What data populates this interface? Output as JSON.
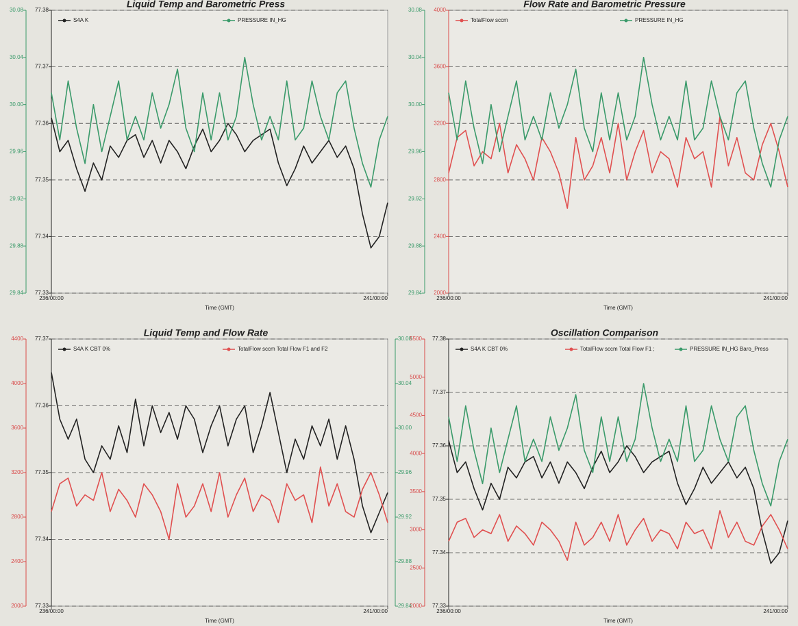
{
  "chart_data": [
    {
      "type": "line",
      "title": "Liquid Temp and Barometric Press",
      "x_label": "Time (GMT)",
      "x": [
        236,
        236.125,
        236.25,
        236.375,
        236.5,
        236.625,
        236.75,
        236.875,
        237,
        237.125,
        237.25,
        237.375,
        237.5,
        237.625,
        237.75,
        237.875,
        238,
        238.125,
        238.25,
        238.375,
        238.5,
        238.625,
        238.75,
        238.875,
        239,
        239.125,
        239.25,
        239.375,
        239.5,
        239.625,
        239.75,
        239.875,
        240,
        240.125,
        240.25,
        240.375,
        240.5,
        240.625,
        240.75,
        240.875,
        241
      ],
      "xlim": [
        236,
        241
      ],
      "xticks": [
        {
          "value": 236,
          "label": "236/00:00"
        },
        {
          "value": 241,
          "label": "241/00:00"
        }
      ],
      "ylim": [
        29.84,
        30.08
      ],
      "yticks": [
        29.84,
        29.88,
        29.92,
        29.96,
        {
          "value": 30,
          "label": "30.00"
        },
        30.04,
        30.08
      ],
      "ycolor": "#3a9a6a",
      "y2lim": [
        77.33,
        77.38
      ],
      "y2ticks": [
        77.33,
        77.34,
        77.35,
        77.36,
        77.37,
        77.38
      ],
      "y2color": "#222222",
      "grid": true,
      "legend": "top",
      "series": [
        {
          "name": "S4A  K",
          "color": "#222222",
          "axis": "y2",
          "values": [
            77.361,
            77.355,
            77.357,
            77.352,
            77.348,
            77.353,
            77.35,
            77.356,
            77.354,
            77.357,
            77.358,
            77.354,
            77.357,
            77.353,
            77.357,
            77.355,
            77.352,
            77.356,
            77.359,
            77.355,
            77.357,
            77.36,
            77.358,
            77.355,
            77.357,
            77.358,
            77.359,
            77.353,
            77.349,
            77.352,
            77.356,
            77.353,
            77.355,
            77.357,
            77.354,
            77.356,
            77.352,
            77.344,
            77.338,
            77.34,
            77.346
          ]
        },
        {
          "name": "PRESSURE  IN_HG",
          "color": "#3a9a6a",
          "axis": "y",
          "values": [
            30.01,
            29.97,
            30.02,
            29.98,
            29.95,
            30,
            29.96,
            29.99,
            30.02,
            29.97,
            29.99,
            29.97,
            30.01,
            29.98,
            30,
            30.03,
            29.98,
            29.96,
            30.01,
            29.97,
            30.01,
            29.97,
            29.99,
            30.04,
            30,
            29.97,
            29.99,
            29.97,
            30.02,
            29.97,
            29.98,
            30.02,
            29.99,
            29.97,
            30.01,
            30.02,
            29.98,
            29.95,
            29.93,
            29.97,
            29.99
          ]
        }
      ]
    },
    {
      "type": "line",
      "title": "Flow Rate and Barometric Pressure",
      "x_label": "Time (GMT)",
      "x": [
        236,
        236.125,
        236.25,
        236.375,
        236.5,
        236.625,
        236.75,
        236.875,
        237,
        237.125,
        237.25,
        237.375,
        237.5,
        237.625,
        237.75,
        237.875,
        238,
        238.125,
        238.25,
        238.375,
        238.5,
        238.625,
        238.75,
        238.875,
        239,
        239.125,
        239.25,
        239.375,
        239.5,
        239.625,
        239.75,
        239.875,
        240,
        240.125,
        240.25,
        240.375,
        240.5,
        240.625,
        240.75,
        240.875,
        241
      ],
      "xlim": [
        236,
        241
      ],
      "xticks": [
        {
          "value": 236,
          "label": "236/00:00"
        },
        {
          "value": 241,
          "label": "241/00:00"
        }
      ],
      "ylim": [
        29.84,
        30.08
      ],
      "yticks": [
        29.84,
        29.88,
        29.92,
        29.96,
        {
          "value": 30,
          "label": "30.00"
        },
        30.04,
        30.08
      ],
      "ycolor": "#3a9a6a",
      "y2lim": [
        2000,
        4000
      ],
      "y2ticks": [
        2000,
        2400,
        2800,
        3200,
        3600,
        4000
      ],
      "y2color": "#d94a4a",
      "grid": true,
      "legend": "top",
      "series": [
        {
          "name": "TotalFlow  sccm",
          "color": "#e05050",
          "axis": "y2",
          "values": [
            2850,
            3100,
            3150,
            2900,
            3000,
            2950,
            3200,
            2850,
            3050,
            2950,
            2800,
            3100,
            3000,
            2850,
            2600,
            3100,
            2800,
            2900,
            3100,
            2850,
            3200,
            2800,
            3000,
            3150,
            2850,
            3000,
            2950,
            2750,
            3100,
            2950,
            3000,
            2750,
            3250,
            2900,
            3100,
            2850,
            2800,
            3050,
            3200,
            3000,
            2750
          ]
        },
        {
          "name": "PRESSURE  IN_HG",
          "color": "#3a9a6a",
          "axis": "y",
          "values": [
            30.01,
            29.97,
            30.02,
            29.98,
            29.95,
            30,
            29.96,
            29.99,
            30.02,
            29.97,
            29.99,
            29.97,
            30.01,
            29.98,
            30,
            30.03,
            29.98,
            29.96,
            30.01,
            29.97,
            30.01,
            29.97,
            29.99,
            30.04,
            30,
            29.97,
            29.99,
            29.97,
            30.02,
            29.97,
            29.98,
            30.02,
            29.99,
            29.97,
            30.01,
            30.02,
            29.98,
            29.95,
            29.93,
            29.97,
            29.99
          ]
        }
      ]
    },
    {
      "type": "line",
      "title": "Liquid Temp and Flow Rate",
      "x_label": "Time (GMT)",
      "x": [
        236,
        236.125,
        236.25,
        236.375,
        236.5,
        236.625,
        236.75,
        236.875,
        237,
        237.125,
        237.25,
        237.375,
        237.5,
        237.625,
        237.75,
        237.875,
        238,
        238.125,
        238.25,
        238.375,
        238.5,
        238.625,
        238.75,
        238.875,
        239,
        239.125,
        239.25,
        239.375,
        239.5,
        239.625,
        239.75,
        239.875,
        240,
        240.125,
        240.25,
        240.375,
        240.5,
        240.625,
        240.75,
        240.875,
        241
      ],
      "xlim": [
        236,
        241
      ],
      "xticks": [
        {
          "value": 236,
          "label": "236/00:00"
        },
        {
          "value": 241,
          "label": "241/00:00"
        }
      ],
      "ylim": [
        2000,
        4400
      ],
      "yticks": [
        2000,
        2400,
        2800,
        3200,
        3600,
        4000,
        4400
      ],
      "ycolor": "#d94a4a",
      "y2lim": [
        77.33,
        77.37
      ],
      "y2ticks": [
        77.33,
        77.34,
        77.35,
        77.36,
        77.37
      ],
      "y2color": "#222222",
      "y3lim": [
        29.84,
        30.08
      ],
      "y3ticks": [
        29.84,
        29.88,
        29.92,
        29.96,
        {
          "value": 30,
          "label": "30.00"
        },
        30.04,
        30.08
      ],
      "y3color": "#3a9a6a",
      "grid": true,
      "legend": "top",
      "series": [
        {
          "name": "S4A  K  CBT 0%",
          "color": "#222222",
          "axis": "y2",
          "values": [
            77.365,
            77.358,
            77.355,
            77.358,
            77.352,
            77.35,
            77.354,
            77.352,
            77.357,
            77.353,
            77.361,
            77.354,
            77.36,
            77.356,
            77.359,
            77.355,
            77.36,
            77.358,
            77.353,
            77.357,
            77.36,
            77.354,
            77.358,
            77.36,
            77.353,
            77.357,
            77.362,
            77.356,
            77.35,
            77.355,
            77.352,
            77.357,
            77.354,
            77.358,
            77.352,
            77.357,
            77.352,
            77.345,
            77.341,
            77.344,
            77.347
          ]
        },
        {
          "name": "TotalFlow  sccm  Total Flow F1 and F2",
          "color": "#e05050",
          "axis": "y",
          "values": [
            2850,
            3100,
            3150,
            2900,
            3000,
            2950,
            3200,
            2850,
            3050,
            2950,
            2800,
            3100,
            3000,
            2850,
            2600,
            3100,
            2800,
            2900,
            3100,
            2850,
            3200,
            2800,
            3000,
            3150,
            2850,
            3000,
            2950,
            2750,
            3100,
            2950,
            3000,
            2750,
            3250,
            2900,
            3100,
            2850,
            2800,
            3050,
            3200,
            3000,
            2750
          ]
        }
      ]
    },
    {
      "type": "line",
      "title": "Oscillation Comparison",
      "x_label": "Time (GMT)",
      "x": [
        236,
        236.125,
        236.25,
        236.375,
        236.5,
        236.625,
        236.75,
        236.875,
        237,
        237.125,
        237.25,
        237.375,
        237.5,
        237.625,
        237.75,
        237.875,
        238,
        238.125,
        238.25,
        238.375,
        238.5,
        238.625,
        238.75,
        238.875,
        239,
        239.125,
        239.25,
        239.375,
        239.5,
        239.625,
        239.75,
        239.875,
        240,
        240.125,
        240.25,
        240.375,
        240.5,
        240.625,
        240.75,
        240.875,
        241
      ],
      "xlim": [
        236,
        241
      ],
      "xticks": [
        {
          "value": 236,
          "label": "236/00:00"
        },
        {
          "value": 241,
          "label": "241/00:00"
        }
      ],
      "ylim": [
        2000,
        5500
      ],
      "yticks": [
        2000,
        2500,
        3000,
        3500,
        4000,
        4500,
        5000,
        5500
      ],
      "ycolor": "#d94a4a",
      "y2lim": [
        77.33,
        77.38
      ],
      "y2ticks": [
        77.33,
        77.34,
        77.35,
        77.36,
        77.37,
        77.38
      ],
      "y2color": "#222222",
      "y3lim": [
        29.84,
        30.08
      ],
      "grid": true,
      "legend": "top",
      "series": [
        {
          "name": "S4A  K  CBT 0%",
          "color": "#222222",
          "axis": "y2",
          "values": [
            77.361,
            77.355,
            77.357,
            77.352,
            77.348,
            77.353,
            77.35,
            77.356,
            77.354,
            77.357,
            77.358,
            77.354,
            77.357,
            77.353,
            77.357,
            77.355,
            77.352,
            77.356,
            77.359,
            77.355,
            77.357,
            77.36,
            77.358,
            77.355,
            77.357,
            77.358,
            77.359,
            77.353,
            77.349,
            77.352,
            77.356,
            77.353,
            77.355,
            77.357,
            77.354,
            77.356,
            77.352,
            77.344,
            77.338,
            77.34,
            77.346
          ]
        },
        {
          "name": "TotalFlow  sccm  Total Flow F1 ;",
          "color": "#e05050",
          "axis": "y",
          "values": [
            2850,
            3100,
            3150,
            2900,
            3000,
            2950,
            3200,
            2850,
            3050,
            2950,
            2800,
            3100,
            3000,
            2850,
            2600,
            3100,
            2800,
            2900,
            3100,
            2850,
            3200,
            2800,
            3000,
            3150,
            2850,
            3000,
            2950,
            2750,
            3100,
            2950,
            3000,
            2750,
            3250,
            2900,
            3100,
            2850,
            2800,
            3050,
            3200,
            3000,
            2750
          ]
        },
        {
          "name": "PRESSURE  IN_HG  Baro_Press",
          "color": "#3a9a6a",
          "axis": "y3",
          "values": [
            30.01,
            29.97,
            30.02,
            29.98,
            29.95,
            30,
            29.96,
            29.99,
            30.02,
            29.97,
            29.99,
            29.97,
            30.01,
            29.98,
            30,
            30.03,
            29.98,
            29.96,
            30.01,
            29.97,
            30.01,
            29.97,
            29.99,
            30.04,
            30,
            29.97,
            29.99,
            29.97,
            30.02,
            29.97,
            29.98,
            30.02,
            29.99,
            29.97,
            30.01,
            30.02,
            29.98,
            29.95,
            29.93,
            29.97,
            29.99
          ]
        }
      ]
    }
  ]
}
